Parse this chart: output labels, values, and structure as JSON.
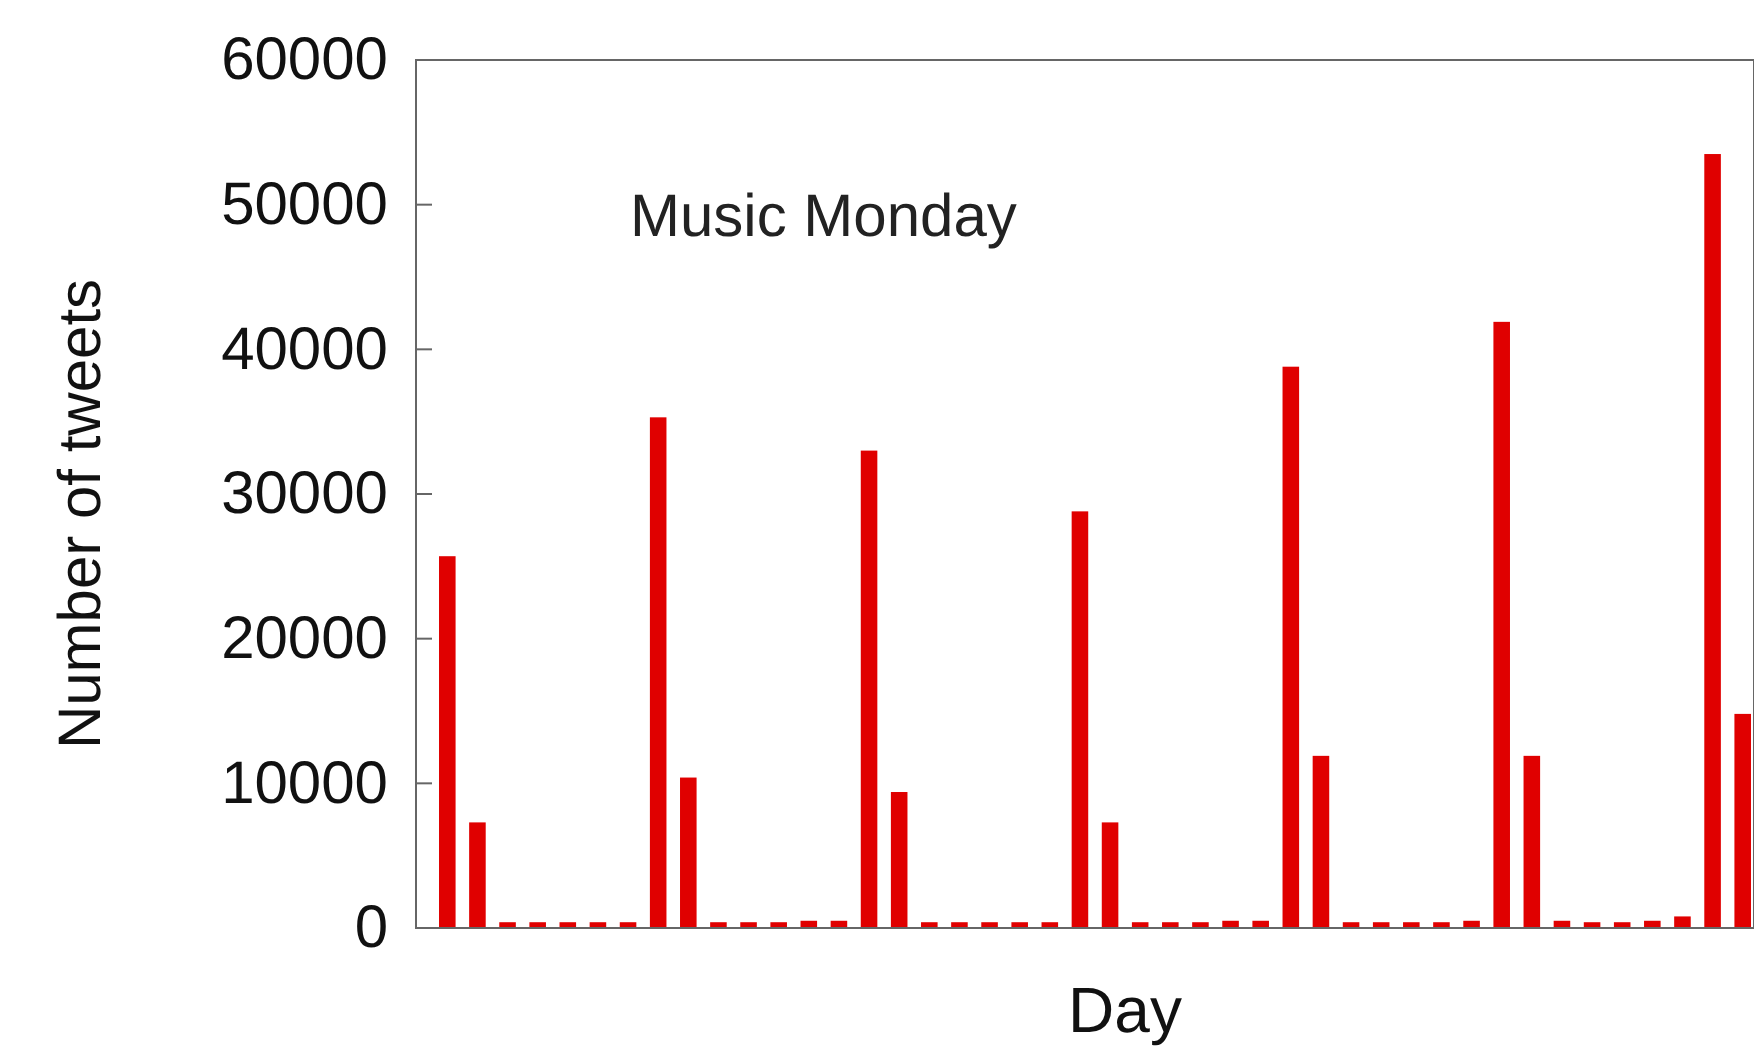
{
  "chart_data": {
    "type": "bar",
    "title": "Music Monday",
    "xlabel": "Day",
    "ylabel": "Number of tweets",
    "categories": [
      null,
      null,
      null,
      null,
      null,
      null,
      null,
      null,
      null,
      null,
      null,
      null,
      null,
      null,
      null,
      null,
      null,
      null,
      null,
      null,
      null,
      null,
      null,
      null,
      null,
      null,
      null,
      null,
      null,
      null,
      null,
      null,
      null,
      null,
      null,
      null,
      null,
      null,
      null,
      null,
      null,
      null,
      null,
      null
    ],
    "values": [
      25700,
      7300,
      400,
      400,
      400,
      400,
      400,
      35300,
      10400,
      400,
      400,
      400,
      500,
      500,
      33000,
      9400,
      400,
      400,
      400,
      400,
      400,
      28800,
      7300,
      400,
      400,
      400,
      500,
      500,
      38800,
      11900,
      400,
      400,
      400,
      400,
      500,
      41900,
      11900,
      500,
      400,
      400,
      500,
      800,
      53500,
      14800
    ],
    "color": "#e00000",
    "ylim": [
      0,
      60000
    ],
    "yticks": [
      0,
      10000,
      20000,
      30000,
      40000,
      50000,
      60000
    ]
  }
}
